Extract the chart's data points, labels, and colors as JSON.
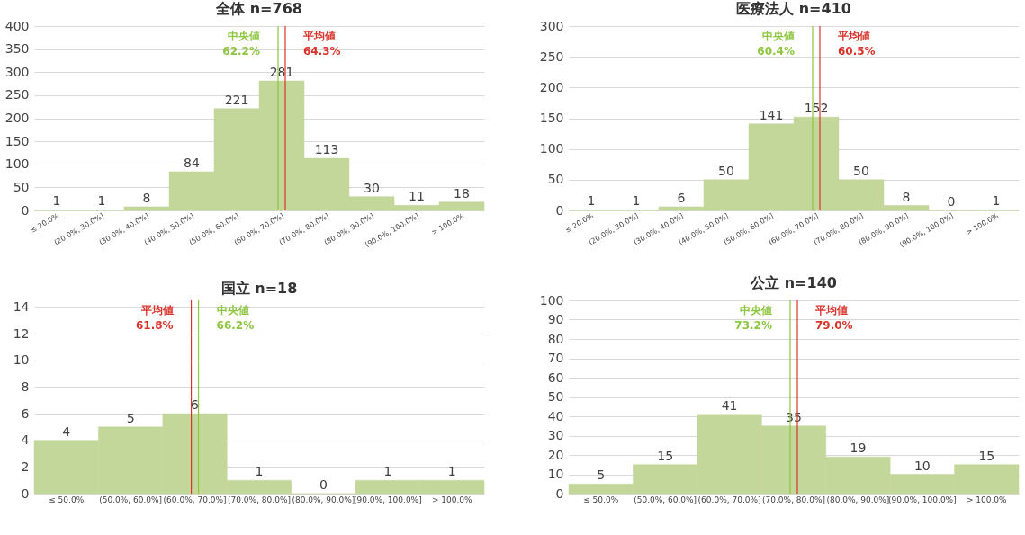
{
  "chart_data": [
    {
      "type": "bar",
      "title": "全体  n=768",
      "categories": [
        "≤ 20.0%",
        "(20.0%, 30.0%]",
        "(30.0%, 40.0%]",
        "(40.0%, 50.0%]",
        "(50.0%, 60.0%]",
        "(60.0%, 70.0%]",
        "(70.0%, 80.0%]",
        "(80.0%, 90.0%]",
        "(90.0%, 100.0%]",
        "> 100.0%"
      ],
      "values": [
        1,
        1,
        8,
        84,
        221,
        281,
        113,
        30,
        11,
        18
      ],
      "color": "#c4d79b",
      "data_labels": true,
      "ylim": [
        0,
        400
      ],
      "yticks": [
        0,
        50,
        100,
        150,
        200,
        250,
        300,
        350,
        400
      ],
      "grid": "y",
      "ref_lines": [
        {
          "axis": "x",
          "value": "(60.0%, 70.0%]",
          "label": "中央値\n62.2%",
          "color": "#8dc63f"
        },
        {
          "axis": "x",
          "value": "(60.0%, 70.0%]",
          "label": "平均値\n64.3%",
          "color": "#d9342b"
        }
      ]
    },
    {
      "type": "bar",
      "title": "医療法人 n=410",
      "categories": [
        "≤ 20.0%",
        "(20.0%, 30.0%]",
        "(30.0%, 40.0%]",
        "(40.0%, 50.0%]",
        "(50.0%, 60.0%]",
        "(60.0%, 70.0%]",
        "(70.0%, 80.0%]",
        "(80.0%, 90.0%]",
        "(90.0%, 100.0%]",
        "> 100.0%"
      ],
      "values": [
        1,
        1,
        6,
        50,
        141,
        152,
        50,
        8,
        0,
        1
      ],
      "color": "#c4d79b",
      "data_labels": true,
      "ylim": [
        0,
        300
      ],
      "yticks": [
        0,
        50,
        100,
        150,
        200,
        250,
        300
      ],
      "grid": "y",
      "ref_lines": [
        {
          "axis": "x",
          "value": "(60.0%, 70.0%]",
          "label": "中央値\n60.4%",
          "color": "#8dc63f"
        },
        {
          "axis": "x",
          "value": "(60.0%, 70.0%]",
          "label": "平均値\n60.5%",
          "color": "#d9342b"
        }
      ]
    },
    {
      "type": "bar",
      "title": "国立 n=18",
      "categories": [
        "≤ 50.0%",
        "(50.0%, 60.0%]",
        "(60.0%, 70.0%]",
        "(70.0%, 80.0%]",
        "(80.0%, 90.0%]",
        "(90.0%, 100.0%]",
        "> 100.0%"
      ],
      "values": [
        4,
        5,
        6,
        1,
        0,
        1,
        1
      ],
      "color": "#c4d79b",
      "data_labels": true,
      "ylim": [
        0,
        14.5
      ],
      "yticks": [
        0,
        2,
        4,
        6,
        8,
        10,
        12,
        14
      ],
      "grid": "y",
      "ref_lines": [
        {
          "axis": "x",
          "value": "(60.0%, 70.0%]",
          "label": "平均値\n61.8%",
          "color": "#d9342b"
        },
        {
          "axis": "x",
          "value": "(60.0%, 70.0%]",
          "label": "中央値\n66.2%",
          "color": "#8dc63f"
        }
      ]
    },
    {
      "type": "bar",
      "title": "公立 n=140",
      "categories": [
        "≤ 50.0%",
        "(50.0%, 60.0%]",
        "(60.0%, 70.0%]",
        "(70.0%, 80.0%]",
        "(80.0%, 90.0%]",
        "(90.0%, 100.0%]",
        "> 100.0%"
      ],
      "values": [
        5,
        15,
        41,
        35,
        19,
        10,
        15
      ],
      "color": "#c4d79b",
      "data_labels": true,
      "ylim": [
        0,
        100
      ],
      "yticks": [
        0,
        10,
        20,
        30,
        40,
        50,
        60,
        70,
        80,
        90,
        100
      ],
      "grid": "y",
      "ref_lines": [
        {
          "axis": "x",
          "value": "(70.0%, 80.0%]",
          "label": "中央値\n73.2%",
          "color": "#8dc63f"
        },
        {
          "axis": "x",
          "value": "(70.0%, 80.0%]",
          "label": "平均値\n79.0%",
          "color": "#d9342b"
        }
      ]
    }
  ]
}
